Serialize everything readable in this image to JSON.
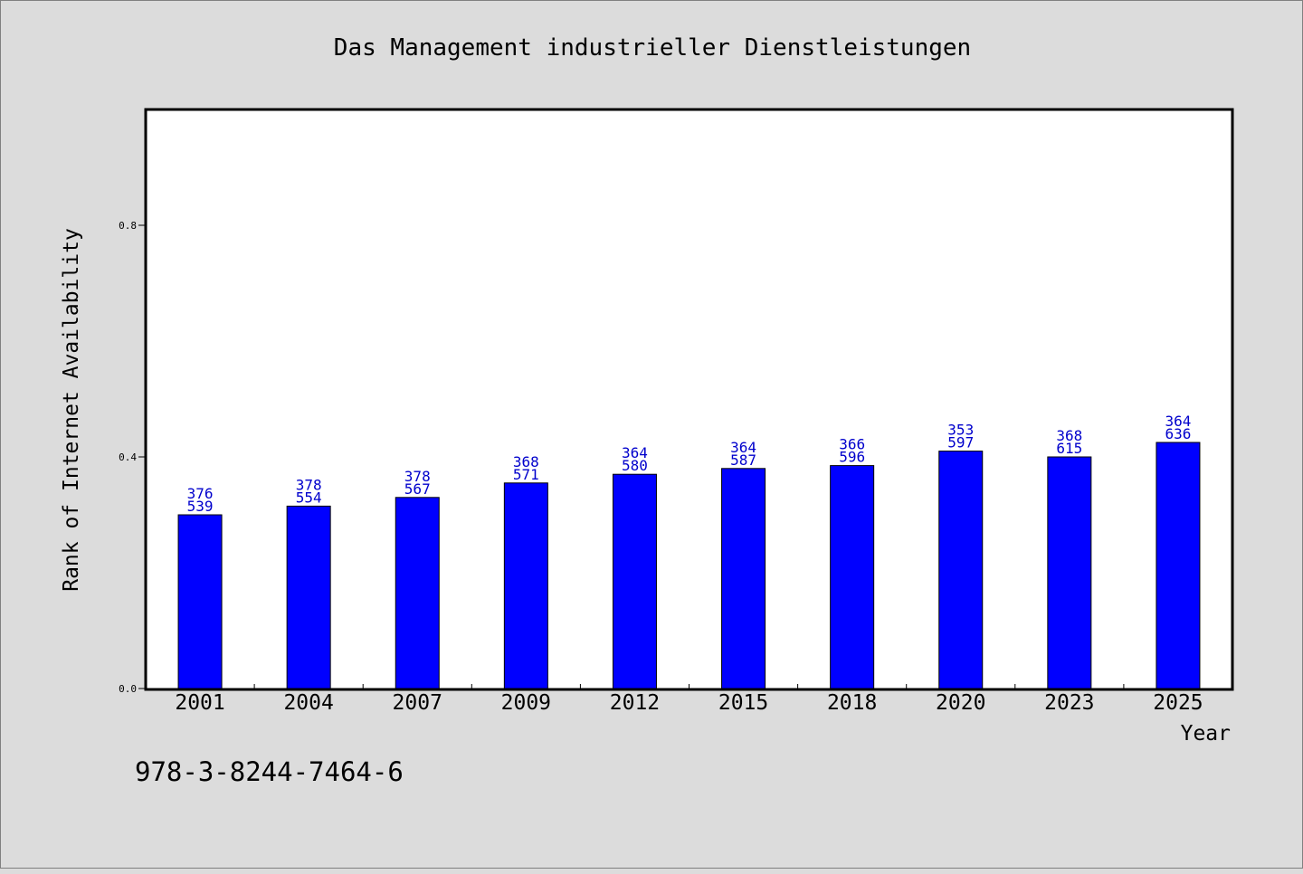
{
  "chart_data": {
    "type": "bar",
    "title": "Das Management industrieller Dienstleistungen",
    "xlabel": "Year",
    "ylabel": "Rank of Internet Availability",
    "categories": [
      "2001",
      "2004",
      "2007",
      "2009",
      "2012",
      "2015",
      "2018",
      "2020",
      "2023",
      "2025"
    ],
    "series": [
      {
        "values": [
          0.3,
          0.315,
          0.33,
          0.355,
          0.37,
          0.38,
          0.385,
          0.41,
          0.4,
          0.425
        ],
        "color": "#0000ff",
        "labels_top": [
          "376",
          "378",
          "378",
          "368",
          "364",
          "364",
          "366",
          "353",
          "368",
          "364"
        ],
        "labels_bottom": [
          "539",
          "554",
          "567",
          "571",
          "580",
          "587",
          "596",
          "597",
          "615",
          "636"
        ]
      }
    ],
    "ylim": [
      0,
      1.0
    ],
    "yticks": [
      "0.0",
      "0.4",
      "0.8"
    ],
    "grid": false,
    "label_color": "#0000cc"
  },
  "footer": {
    "isbn": "978-3-8244-7464-6"
  }
}
